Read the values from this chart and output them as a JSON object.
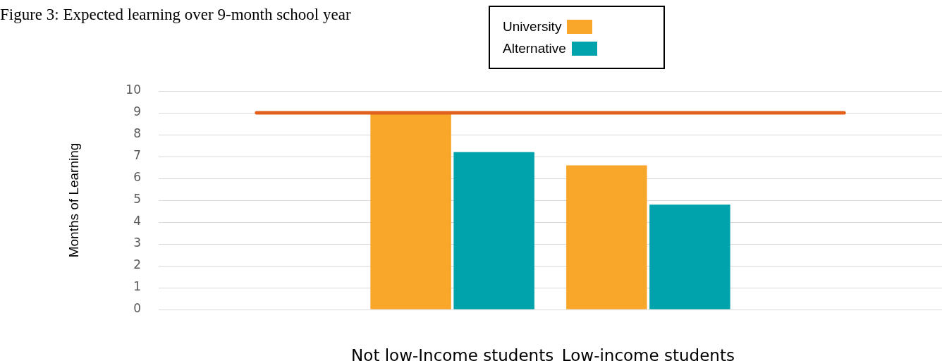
{
  "chart_data": {
    "type": "bar",
    "title": "Figure 3: Expected learning over 9-month school year",
    "ylabel": "Months of Learning",
    "categories": [
      null,
      "Not low-Income students",
      "Low-income students",
      null
    ],
    "series": [
      {
        "name": "University",
        "color": "#f9a72b",
        "values": [
          null,
          9,
          6.6,
          null
        ]
      },
      {
        "name": "Alternative",
        "color": "#00a2ab",
        "values": [
          null,
          7.2,
          4.8,
          null
        ]
      },
      {
        "type": "line",
        "color": "#e0601c",
        "values": [
          9,
          9,
          9,
          9
        ],
        "marker": "none"
      }
    ],
    "ylim": [
      0,
      10
    ],
    "yticks": [
      0,
      1,
      2,
      3,
      4,
      5,
      6,
      7,
      8,
      9,
      10
    ],
    "grid": "y",
    "legend": "top"
  }
}
